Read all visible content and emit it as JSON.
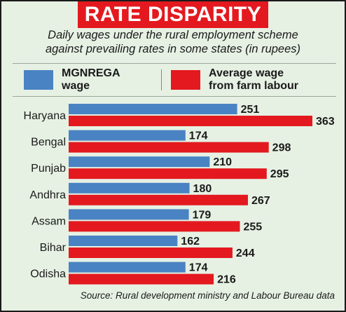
{
  "colors": {
    "mgnrega": "#4a83c3",
    "farm": "#e3191f",
    "title_bg": "#e3191f",
    "panel_bg": "#e6f1e4"
  },
  "legend": {
    "mgnrega_label_line1": "MGNREGA",
    "mgnrega_label_line2": "wage",
    "farm_label_line1": "Average wage",
    "farm_label_line2": "from farm labour"
  },
  "source": "Source: Rural development ministry and Labour Bureau data",
  "chart_data": {
    "type": "bar",
    "orientation": "horizontal",
    "title": "RATE DISPARITY",
    "subtitle_line1": "Daily wages under the rural employment scheme",
    "subtitle_line2": "against prevailing rates in some states (in rupees)",
    "categories": [
      "Haryana",
      "Bengal",
      "Punjab",
      "Andhra",
      "Assam",
      "Bihar",
      "Odisha"
    ],
    "series": [
      {
        "name": "MGNREGA wage",
        "values": [
          251,
          174,
          210,
          180,
          179,
          162,
          174
        ]
      },
      {
        "name": "Average wage from farm labour",
        "values": [
          363,
          298,
          295,
          267,
          255,
          244,
          216
        ]
      }
    ],
    "xlim": [
      0,
      363
    ],
    "grid": false,
    "legend_position": "top"
  }
}
